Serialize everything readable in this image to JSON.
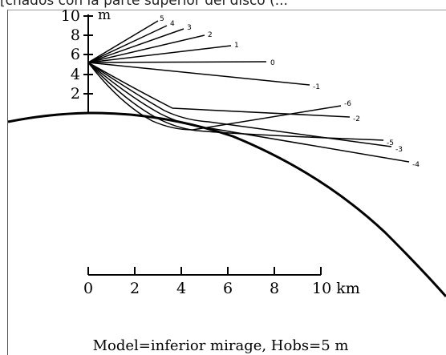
{
  "header_fragment": "[cnados con la parte superior del disco (...",
  "height_axis": {
    "unit": "m",
    "ticks": [
      "10",
      "8",
      "6",
      "4",
      "2"
    ]
  },
  "distance_axis": {
    "ticks": [
      "0",
      "2",
      "4",
      "6",
      "8",
      "10 km"
    ]
  },
  "ray_labels": [
    "5",
    "4",
    "3",
    "2",
    "1",
    "0",
    "-1",
    "-2",
    "-3",
    "-4",
    "-5",
    "-6"
  ],
  "caption": "Model=inferior mirage, Hobs=5 m"
}
